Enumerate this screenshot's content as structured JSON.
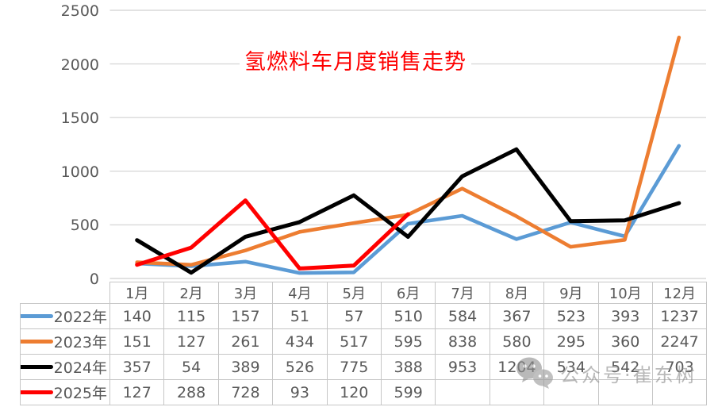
{
  "chart_data": {
    "type": "line",
    "title": "氢燃料车月度销售走势",
    "title_color": "#fe0000",
    "categories": [
      "1月",
      "2月",
      "3月",
      "4月",
      "5月",
      "6月",
      "7月",
      "8月",
      "9月",
      "10月",
      "12月"
    ],
    "series": [
      {
        "name": "2022年",
        "color": "#5B9BD5",
        "values": [
          140,
          115,
          157,
          51,
          57,
          510,
          584,
          367,
          523,
          393,
          1237
        ]
      },
      {
        "name": "2023年",
        "color": "#ED7D31",
        "values": [
          151,
          127,
          261,
          434,
          517,
          595,
          838,
          580,
          295,
          360,
          2247
        ]
      },
      {
        "name": "2024年",
        "color": "#000000",
        "values": [
          357,
          54,
          389,
          526,
          775,
          388,
          953,
          1204,
          534,
          542,
          703
        ]
      },
      {
        "name": "2025年",
        "color": "#FF0000",
        "values": [
          127,
          288,
          728,
          93,
          120,
          599,
          null,
          null,
          null,
          null,
          null
        ]
      }
    ],
    "ylim": [
      0,
      2500
    ],
    "yticks": [
      0,
      500,
      1000,
      1500,
      2000,
      2500
    ],
    "grid": true,
    "gridline_color": "#d9d9d9",
    "axis_label_color": "#595959",
    "legend_position": "table-left-column"
  },
  "watermark": {
    "icon": "wechat-icon",
    "text": "公众号·崔东树"
  }
}
